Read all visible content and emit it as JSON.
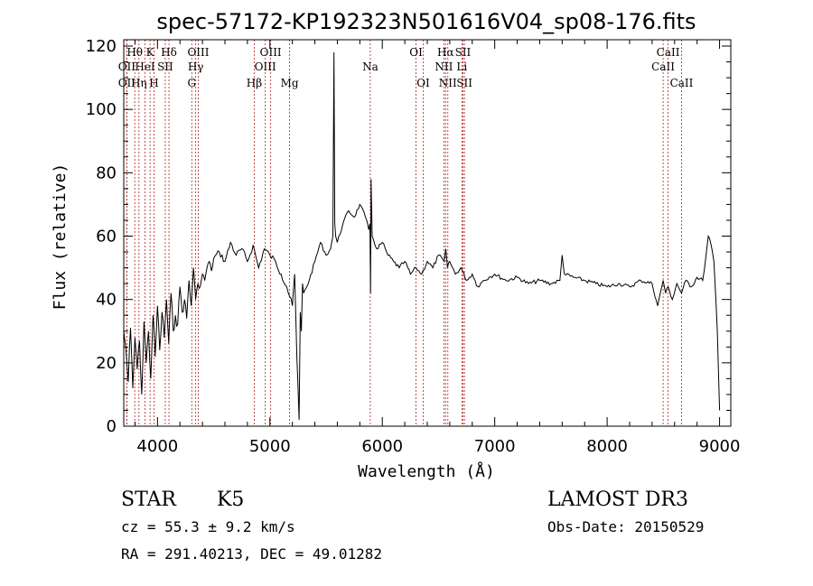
{
  "chart_data": {
    "type": "line",
    "title": "spec-57172-KP192323N501616V04_sp08-176.fits",
    "xlabel": "Wavelength (Å)",
    "ylabel": "Flux (relative)",
    "xlim": [
      3700,
      9100
    ],
    "ylim": [
      0,
      122
    ],
    "xticks": [
      4000,
      5000,
      6000,
      7000,
      8000,
      9000
    ],
    "yticks": [
      0,
      20,
      40,
      60,
      80,
      100,
      120
    ],
    "x": [
      3700,
      3720,
      3740,
      3760,
      3780,
      3800,
      3820,
      3840,
      3860,
      3880,
      3900,
      3920,
      3940,
      3960,
      3980,
      4000,
      4020,
      4040,
      4060,
      4080,
      4100,
      4120,
      4140,
      4160,
      4180,
      4200,
      4220,
      4240,
      4260,
      4280,
      4300,
      4320,
      4340,
      4360,
      4380,
      4400,
      4420,
      4440,
      4460,
      4480,
      4500,
      4550,
      4600,
      4650,
      4700,
      4750,
      4800,
      4850,
      4900,
      4950,
      5000,
      5050,
      5100,
      5150,
      5200,
      5220,
      5240,
      5260,
      5270,
      5280,
      5290,
      5300,
      5350,
      5400,
      5450,
      5500,
      5540,
      5560,
      5570,
      5577,
      5585,
      5600,
      5650,
      5700,
      5750,
      5800,
      5850,
      5880,
      5890,
      5895,
      5900,
      5910,
      5950,
      6000,
      6050,
      6100,
      6150,
      6200,
      6250,
      6300,
      6350,
      6400,
      6450,
      6500,
      6550,
      6565,
      6580,
      6600,
      6650,
      6700,
      6750,
      6800,
      6850,
      6900,
      6950,
      7000,
      7100,
      7200,
      7300,
      7400,
      7500,
      7580,
      7600,
      7620,
      7700,
      7800,
      7900,
      8000,
      8100,
      8200,
      8300,
      8400,
      8450,
      8498,
      8520,
      8542,
      8580,
      8620,
      8662,
      8700,
      8750,
      8800,
      8850,
      8880,
      8900,
      8920,
      8950,
      8980,
      9000
    ],
    "y": [
      30,
      24,
      14,
      31,
      12,
      28,
      18,
      27,
      10,
      33,
      20,
      30,
      15,
      35,
      22,
      38,
      24,
      36,
      28,
      40,
      26,
      42,
      30,
      35,
      32,
      44,
      36,
      40,
      34,
      46,
      38,
      50,
      40,
      45,
      44,
      48,
      46,
      50,
      52,
      49,
      53,
      55,
      52,
      58,
      54,
      56,
      52,
      57,
      50,
      56,
      54,
      52,
      48,
      44,
      38,
      48,
      22,
      2,
      36,
      30,
      45,
      42,
      46,
      52,
      58,
      54,
      56,
      60,
      118,
      64,
      60,
      58,
      64,
      68,
      66,
      70,
      66,
      62,
      64,
      42,
      78,
      60,
      56,
      58,
      54,
      52,
      50,
      52,
      48,
      50,
      48,
      52,
      50,
      54,
      52,
      56,
      50,
      52,
      48,
      50,
      46,
      48,
      44,
      46,
      47,
      48,
      46,
      47,
      45,
      46,
      45,
      46,
      54,
      48,
      47,
      46,
      45,
      44,
      45,
      44,
      46,
      45,
      38,
      46,
      42,
      44,
      40,
      45,
      42,
      46,
      44,
      47,
      46,
      54,
      60,
      58,
      52,
      30,
      5
    ],
    "spectral_lines": [
      {
        "name": "Hθ",
        "wavelength": 3798,
        "row": 1
      },
      {
        "name": "OII",
        "wavelength": 3727,
        "row": 2
      },
      {
        "name": "OII",
        "wavelength": 3727,
        "row": 3
      },
      {
        "name": "Hη",
        "wavelength": 3835,
        "row": 3
      },
      {
        "name": "K",
        "wavelength": 3934,
        "row": 1
      },
      {
        "name": "HeI",
        "wavelength": 3889,
        "row": 2
      },
      {
        "name": "H",
        "wavelength": 3969,
        "row": 3
      },
      {
        "name": "SII",
        "wavelength": 4069,
        "row": 2
      },
      {
        "name": "Hδ",
        "wavelength": 4102,
        "row": 1
      },
      {
        "name": "OIII",
        "wavelength": 4363,
        "row": 1
      },
      {
        "name": "Hγ",
        "wavelength": 4340,
        "row": 2
      },
      {
        "name": "G",
        "wavelength": 4305,
        "row": 3
      },
      {
        "name": "Hβ",
        "wavelength": 4861,
        "row": 3
      },
      {
        "name": "OIII",
        "wavelength": 5007,
        "row": 1
      },
      {
        "name": "OIII",
        "wavelength": 4959,
        "row": 2
      },
      {
        "name": "Mg",
        "wavelength": 5175,
        "row": 3
      },
      {
        "name": "Na",
        "wavelength": 5893,
        "row": 2
      },
      {
        "name": "OI",
        "wavelength": 6300,
        "row": 1
      },
      {
        "name": "OI",
        "wavelength": 6364,
        "row": 3
      },
      {
        "name": "Hα",
        "wavelength": 6563,
        "row": 1
      },
      {
        "name": "NII",
        "wavelength": 6548,
        "row": 2
      },
      {
        "name": "NII",
        "wavelength": 6583,
        "row": 3
      },
      {
        "name": "SII",
        "wavelength": 6717,
        "row": 1
      },
      {
        "name": "Li",
        "wavelength": 6708,
        "row": 2
      },
      {
        "name": "SII",
        "wavelength": 6731,
        "row": 3
      },
      {
        "name": "CaII",
        "wavelength": 8542,
        "row": 1
      },
      {
        "name": "CaII",
        "wavelength": 8498,
        "row": 2
      },
      {
        "name": "CaII",
        "wavelength": 8662,
        "row": 3
      }
    ],
    "line_colors": {
      "spectrum": "#000000",
      "marker": "#b22222"
    }
  },
  "info": {
    "class": "STAR",
    "subclass": "K5",
    "survey": "LAMOST DR3",
    "cz": "cz = 55.3 ± 9.2 km/s",
    "obs_date": "Obs-Date: 20150529",
    "coords": "RA = 291.40213, DEC =  49.01282"
  }
}
